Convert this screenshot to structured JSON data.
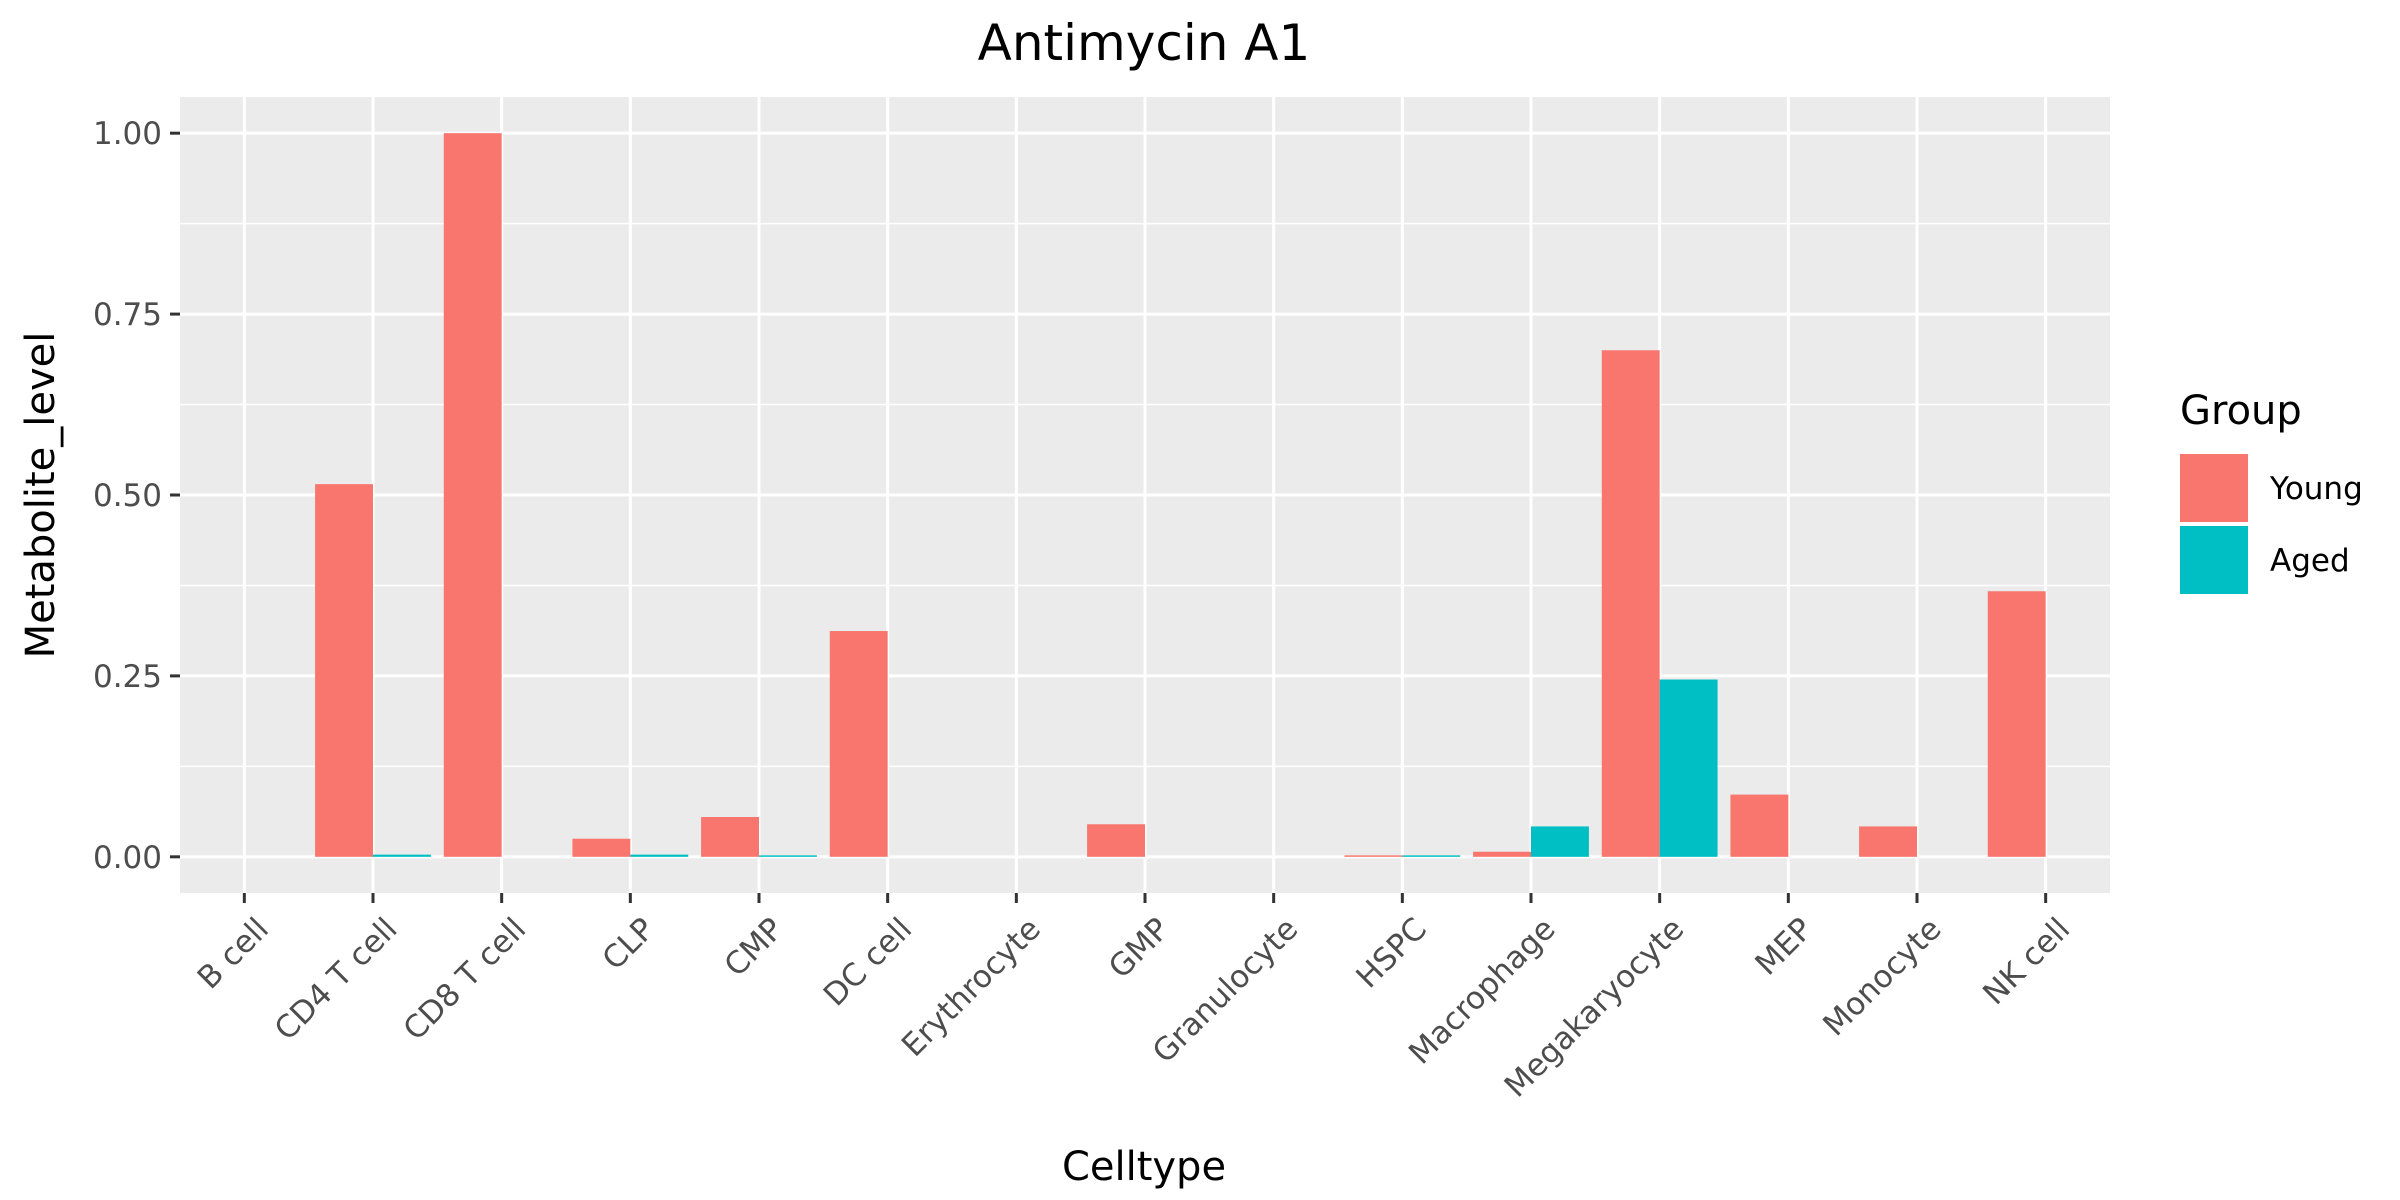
{
  "chart_data": {
    "type": "bar",
    "title": "Antimycin A1",
    "xlabel": "Celltype",
    "ylabel": "Metabolite_level",
    "categories": [
      "B cell",
      "CD4 T cell",
      "CD8 T cell",
      "CLP",
      "CMP",
      "DC cell",
      "Erythrocyte",
      "GMP",
      "Granulocyte",
      "HSPC",
      "Macrophage",
      "Megakaryocyte",
      "MEP",
      "Monocyte",
      "NK cell"
    ],
    "series": [
      {
        "name": "Young",
        "color": "#F8766D",
        "values": [
          0,
          0.515,
          1.0,
          0.025,
          0.055,
          0.312,
          0,
          0.045,
          0,
          0.002,
          0.007,
          0.7,
          0.086,
          0.042,
          0.367
        ]
      },
      {
        "name": "Aged",
        "color": "#00BFC4",
        "values": [
          0,
          0.003,
          0,
          0.003,
          0.002,
          0,
          0,
          0,
          0,
          0.002,
          0.042,
          0.245,
          0,
          0,
          0
        ]
      }
    ],
    "ylim": [
      -0.05,
      1.05
    ],
    "yticks": [
      0,
      0.25,
      0.5,
      0.75,
      1.0
    ],
    "ytick_labels": [
      "0.00",
      "0.25",
      "0.50",
      "0.75",
      "1.00"
    ],
    "legend_title": "Group",
    "legend_position": "right",
    "grid": true,
    "panel_color": "#EBEBEB",
    "grid_color": "#FFFFFF"
  }
}
